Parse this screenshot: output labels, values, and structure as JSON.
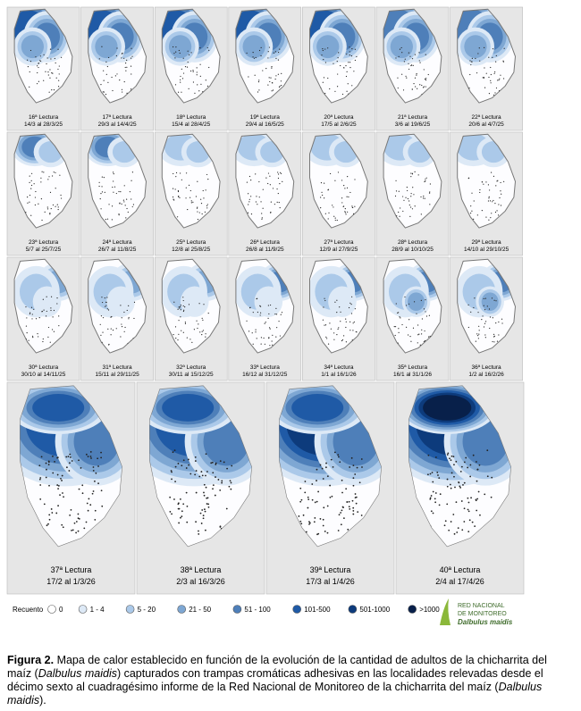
{
  "panels": [
    {
      "label": "16ª Lectura",
      "dates": "14/3 al 28/3/25"
    },
    {
      "label": "17ª Lectura",
      "dates": "29/3 al 14/4/25"
    },
    {
      "label": "18ª Lectura",
      "dates": "15/4 al 28/4/25"
    },
    {
      "label": "19ª Lectura",
      "dates": "29/4 al 16/5/25"
    },
    {
      "label": "20ª Lectura",
      "dates": "17/5 al 2/6/25"
    },
    {
      "label": "21ª Lectura",
      "dates": "3/6 al 19/6/25"
    },
    {
      "label": "22ª Lectura",
      "dates": "20/6 al 4/7/25"
    },
    {
      "label": "23ª Lectura",
      "dates": "5/7 al 25/7/25"
    },
    {
      "label": "24ª Lectura",
      "dates": "26/7 al 11/8/25"
    },
    {
      "label": "25ª Lectura",
      "dates": "12/8 al 25/8/25"
    },
    {
      "label": "26ª Lectura",
      "dates": "26/8 al 11/9/25"
    },
    {
      "label": "27ª Lectura",
      "dates": "12/9 al 27/9/25"
    },
    {
      "label": "28ª Lectura",
      "dates": "28/9 al 10/10/25"
    },
    {
      "label": "29ª Lectura",
      "dates": "14/10 al 29/10/25"
    },
    {
      "label": "30ª Lectura",
      "dates": "30/10 al 14/11/25"
    },
    {
      "label": "31ª Lectura",
      "dates": "15/11 al 29/11/25"
    },
    {
      "label": "32ª Lectura",
      "dates": "30/11 al 15/12/25"
    },
    {
      "label": "33ª Lectura",
      "dates": "16/12 al 31/12/25"
    },
    {
      "label": "34ª Lectura",
      "dates": "1/1 al 16/1/26"
    },
    {
      "label": "35ª Lectura",
      "dates": "16/1 al 31/1/26"
    },
    {
      "label": "36ª Lectura",
      "dates": "1/2 al 16/2/26"
    },
    {
      "label": "37ª Lectura",
      "dates": "17/2 al 1/3/26"
    },
    {
      "label": "38ª Lectura",
      "dates": "2/3 al 16/3/26"
    },
    {
      "label": "39ª Lectura",
      "dates": "17/3 al 1/4/26"
    },
    {
      "label": "40ª Lectura",
      "dates": "2/4 al 17/4/26"
    }
  ],
  "legend": {
    "title": "Recuento",
    "items": [
      {
        "label": "0",
        "color": "#ffffff"
      },
      {
        "label": "1 - 4",
        "color": "#dde9f6"
      },
      {
        "label": "5 - 20",
        "color": "#abc9e9"
      },
      {
        "label": "21 - 50",
        "color": "#7ea7d3"
      },
      {
        "label": "51 - 100",
        "color": "#4e7fb9"
      },
      {
        "label": "101-500",
        "color": "#1f5aa6"
      },
      {
        "label": "501-1000",
        "color": "#0d3b7c"
      },
      {
        "label": ">1000",
        "color": "#08204a"
      }
    ]
  },
  "logo": {
    "line1": "RED NACIONAL",
    "line2": "DE MONITOREO",
    "line3": "Dalbulus maidis"
  },
  "caption": {
    "label": "Figura 2.",
    "segments": [
      " Mapa de calor establecido en función de la evolución de la cantidad de adultos de la chicharrita del maíz (",
      "Dalbulus maidis",
      ") capturados con trampas cromáticas adhesivas en las localidades relevadas desde el décimo sexto al cuadragésimo informe de la Red Nacional de Monitoreo de la chicharrita del maíz (",
      "Dalbulus maidis",
      "). "
    ]
  }
}
